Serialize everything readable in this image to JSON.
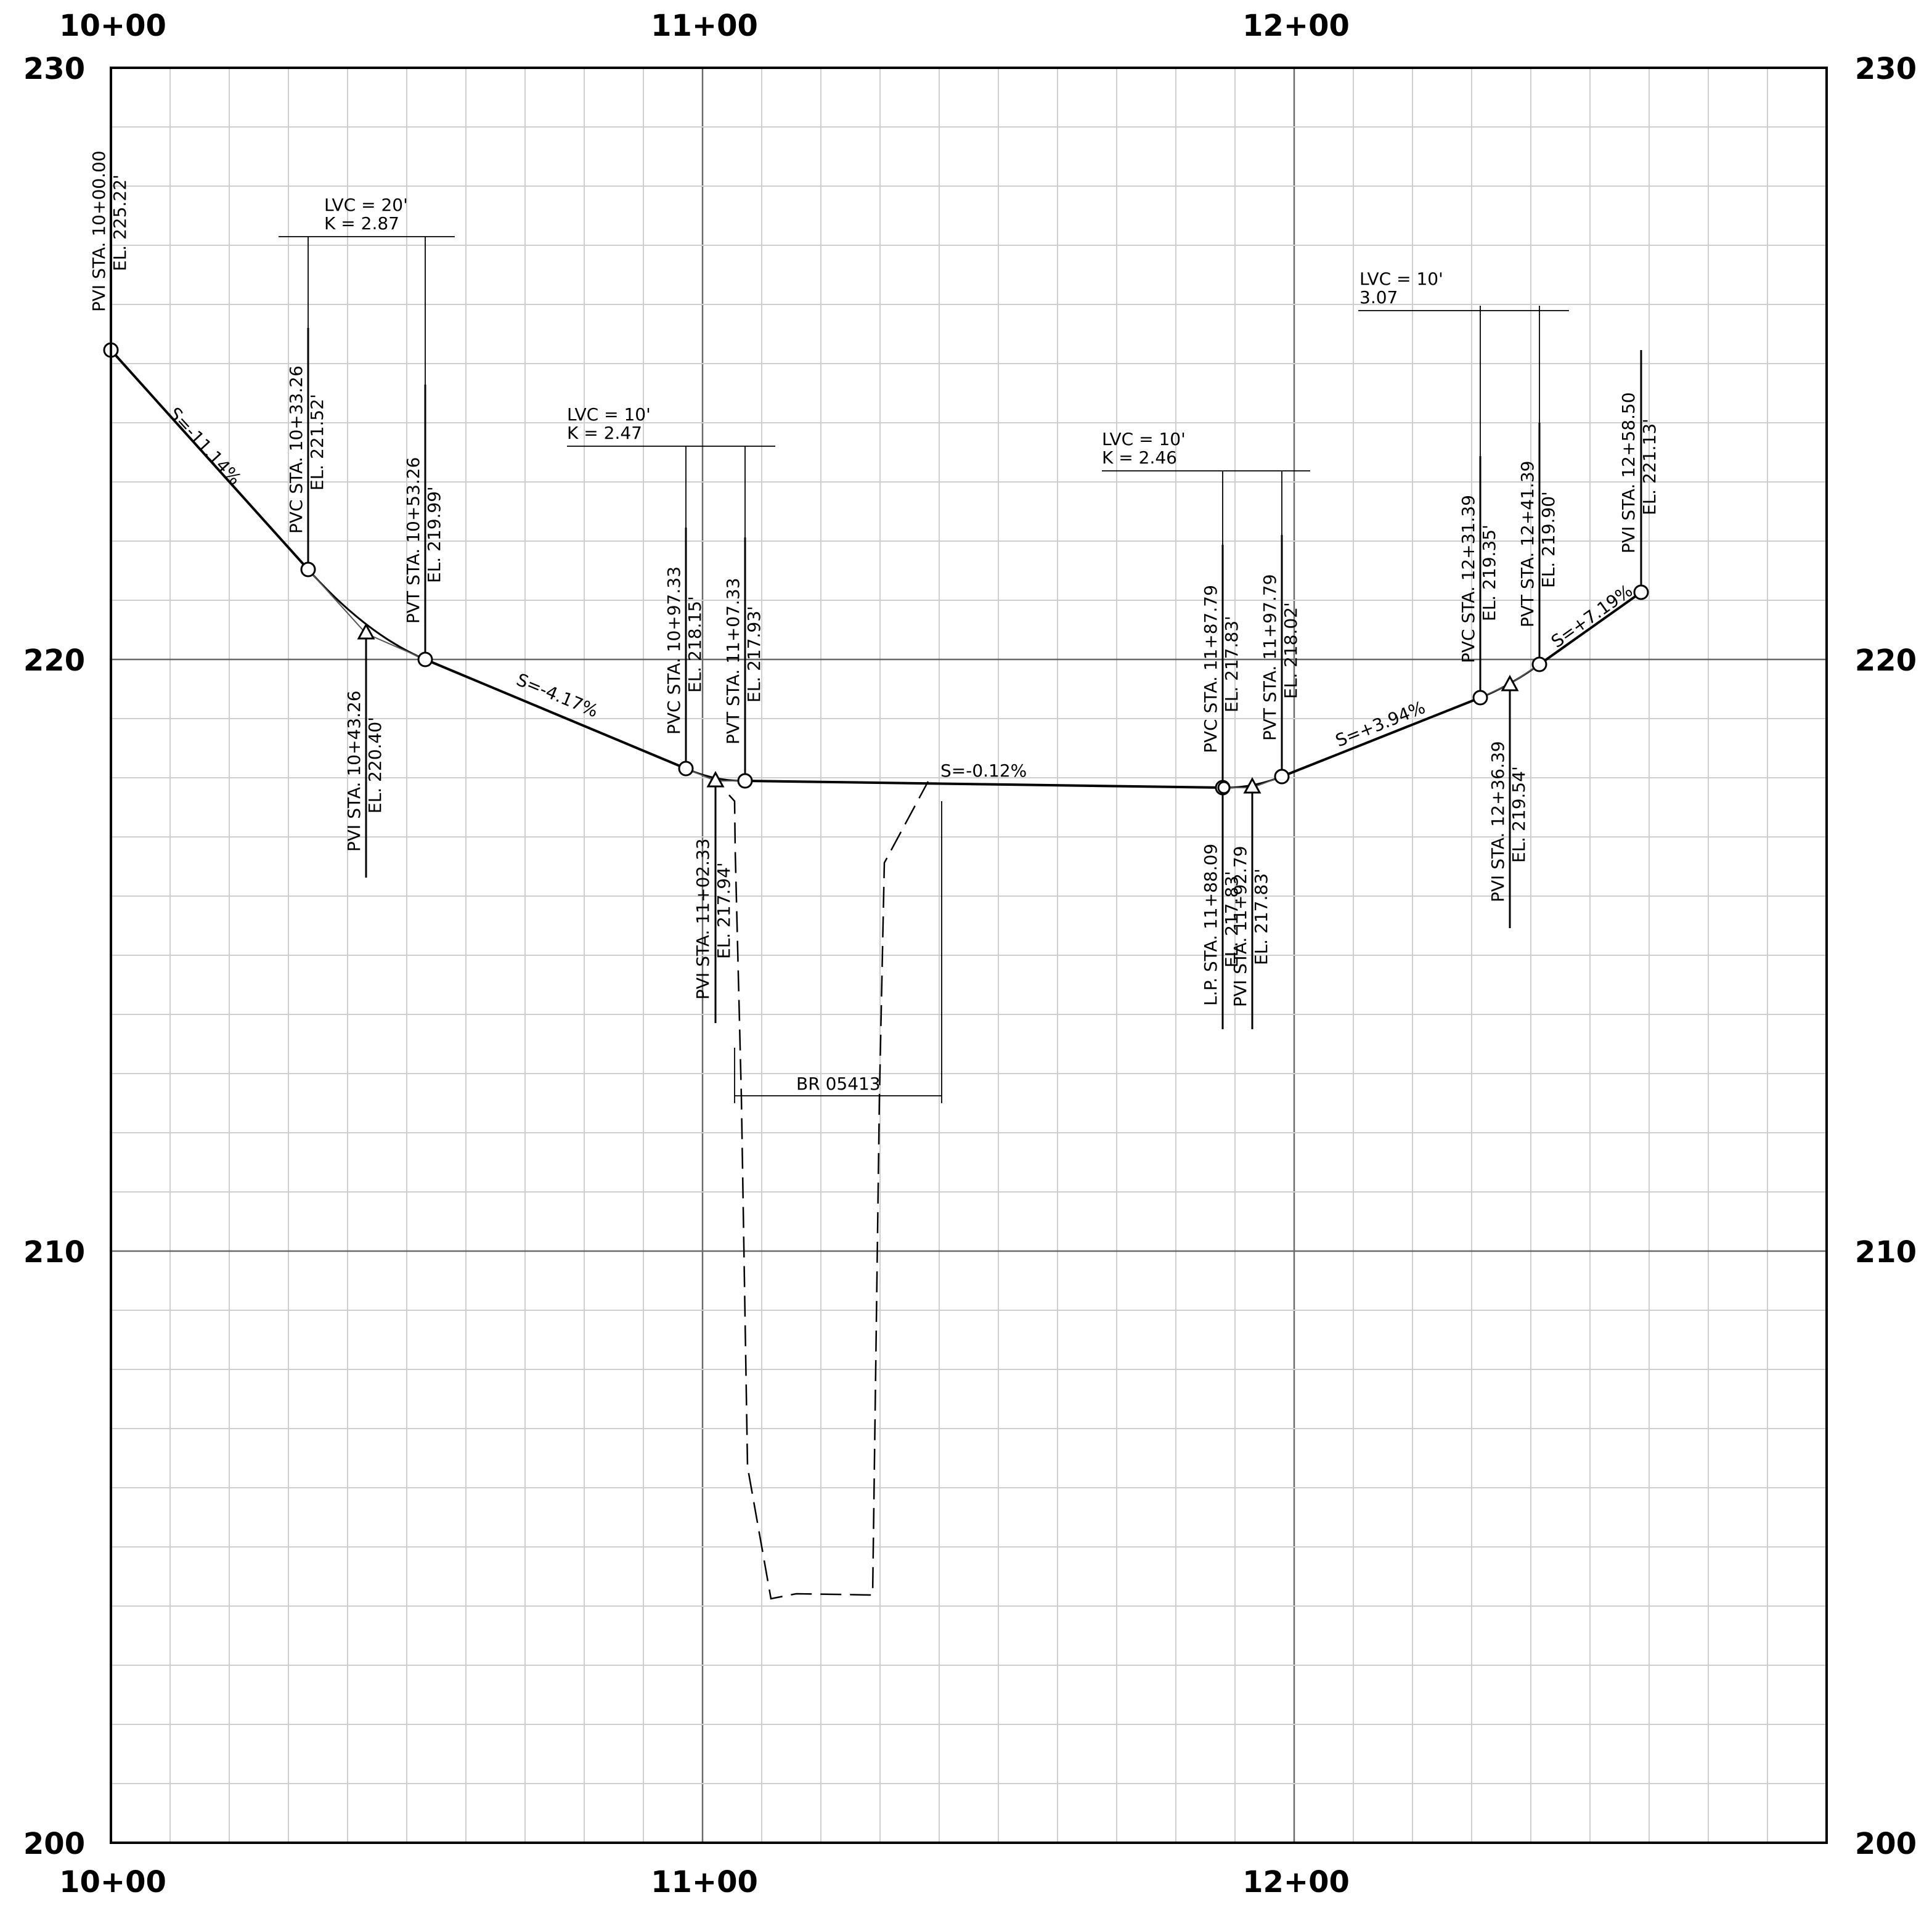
{
  "station_labels": {
    "top": [
      "10+00",
      "11+00",
      "12+00"
    ],
    "bottom": [
      "10+00",
      "11+00",
      "12+00"
    ]
  },
  "elevation_labels": {
    "left": [
      "230",
      "220",
      "210",
      "200"
    ],
    "right": [
      "230",
      "220",
      "210",
      "200"
    ]
  },
  "slopes": [
    "S=-11.14%",
    "S=-4.17%",
    "S=-0.12%",
    "S=+3.94%",
    "S=+7.19%"
  ],
  "curves": [
    {
      "lvc": "LVC = 20'",
      "k": "K = 2.87"
    },
    {
      "lvc": "LVC = 10'",
      "k": "K = 2.47"
    },
    {
      "lvc": "LVC = 10'",
      "k": "K = 2.46"
    },
    {
      "lvc": "LVC = 10'",
      "k": "3.07"
    }
  ],
  "points": [
    {
      "sta": "PVI STA. 10+00.00",
      "el": "EL. 225.22'"
    },
    {
      "sta": "PVC STA. 10+33.26",
      "el": "EL. 221.52'"
    },
    {
      "sta": "PVI STA. 10+43.26",
      "el": "EL. 220.40'"
    },
    {
      "sta": "PVT STA. 10+53.26",
      "el": "EL. 219.99'"
    },
    {
      "sta": "PVC STA. 10+97.33",
      "el": "EL. 218.15'"
    },
    {
      "sta": "PVI STA. 11+02.33",
      "el": "EL. 217.94'"
    },
    {
      "sta": "PVT STA. 11+07.33",
      "el": "EL. 217.93'"
    },
    {
      "sta": "PVC STA. 11+87.79",
      "el": "EL. 217.83'"
    },
    {
      "sta": "L.P. STA. 11+88.09",
      "el": "EL. 217.83'"
    },
    {
      "sta": "PVI STA. 11+92.79",
      "el": "EL. 217.83'"
    },
    {
      "sta": "PVT STA. 11+97.79",
      "el": "EL. 218.02'"
    },
    {
      "sta": "PVC STA. 12+31.39",
      "el": "EL. 219.35'"
    },
    {
      "sta": "PVI STA. 12+36.39",
      "el": "EL. 219.54'"
    },
    {
      "sta": "PVT STA. 12+41.39",
      "el": "EL. 219.90'"
    },
    {
      "sta": "PVI STA. 12+58.50",
      "el": "EL. 221.13'"
    }
  ],
  "bridge": {
    "label": "BR 05413"
  }
}
